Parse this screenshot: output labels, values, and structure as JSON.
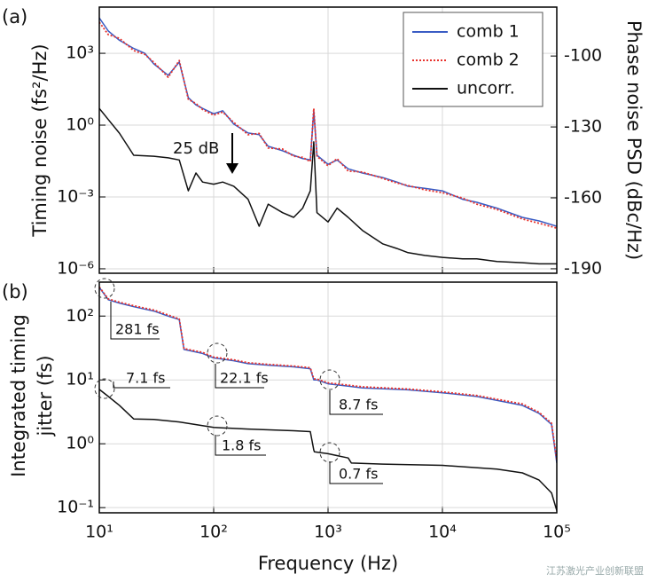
{
  "chart_data": [
    {
      "type": "line",
      "panel_label": "(a)",
      "xscale": "log",
      "yscale": "log",
      "grid": true,
      "legend": "upper right",
      "ylabel": "Timing noise (fs²/Hz)",
      "y2label": "Phase noise PSD (dBc/Hz)",
      "xlim": [
        10,
        100000
      ],
      "xticks": [
        10,
        100,
        1000,
        10000,
        100000
      ],
      "ylim": [
        6.5e-07,
        85000
      ],
      "yticks": [
        {
          "value": 1000,
          "label": "10³"
        },
        {
          "value": 1,
          "label": "10⁰"
        },
        {
          "value": 0.001,
          "label": "10⁻³"
        },
        {
          "value": 1e-06,
          "label": "10⁻⁶"
        }
      ],
      "y2lim": [
        -191.9,
        -79.3
      ],
      "y2ticks": [
        -100,
        -130,
        -160,
        -190
      ],
      "annotations": [
        "25 dB"
      ],
      "series": [
        {
          "name": "comb 1",
          "color": "#3a5cc4",
          "style": "solid",
          "x": [
            10,
            12,
            15,
            20,
            25,
            30,
            40,
            50,
            60,
            70,
            80,
            100,
            120,
            150,
            200,
            250,
            300,
            400,
            500,
            600,
            700,
            750,
            800,
            1000,
            1200,
            1500,
            2000,
            3000,
            4000,
            5000,
            7000,
            10000,
            15000,
            20000,
            30000,
            50000,
            70000,
            100000
          ],
          "values": [
            30000,
            8500,
            3500,
            1600,
            1000,
            360,
            120,
            430,
            14,
            7,
            5,
            3,
            4,
            1.1,
            0.47,
            0.4,
            0.13,
            0.085,
            0.055,
            0.04,
            0.035,
            4,
            0.055,
            0.023,
            0.035,
            0.015,
            0.01,
            0.0065,
            0.0042,
            0.0028,
            0.0023,
            0.0018,
            0.0008,
            0.0006,
            0.00034,
            0.00014,
            0.0001,
            6e-05
          ]
        },
        {
          "name": "comb 2",
          "color": "#e8322d",
          "style": "dotted",
          "x": [
            10,
            12,
            15,
            20,
            25,
            30,
            40,
            50,
            60,
            70,
            80,
            100,
            120,
            150,
            200,
            250,
            300,
            400,
            500,
            600,
            700,
            750,
            800,
            1000,
            1200,
            1500,
            2000,
            3000,
            4000,
            5000,
            7000,
            10000,
            15000,
            20000,
            30000,
            50000,
            70000,
            100000
          ],
          "values": [
            20000,
            6000,
            4200,
            1300,
            900,
            420,
            100,
            500,
            12,
            8,
            4.5,
            2.6,
            3.5,
            1.3,
            0.4,
            0.45,
            0.11,
            0.1,
            0.05,
            0.045,
            0.03,
            5,
            0.05,
            0.02,
            0.04,
            0.012,
            0.011,
            0.006,
            0.0038,
            0.003,
            0.002,
            0.0015,
            0.0009,
            0.0005,
            0.0003,
            0.00012,
            8e-05,
            5e-05
          ]
        },
        {
          "name": "uncorr.",
          "color": "#111111",
          "style": "solid",
          "x": [
            10,
            12,
            15,
            20,
            30,
            40,
            50,
            60,
            70,
            80,
            100,
            120,
            150,
            200,
            250,
            300,
            400,
            500,
            600,
            700,
            750,
            800,
            1000,
            1200,
            1500,
            2000,
            3000,
            4000,
            5000,
            7000,
            10000,
            15000,
            20000,
            30000,
            50000,
            70000,
            100000
          ],
          "values": [
            5,
            1.7,
            0.46,
            0.055,
            0.05,
            0.043,
            0.035,
            0.0018,
            0.01,
            0.0042,
            0.0034,
            0.0042,
            0.0028,
            0.0008,
            6e-05,
            0.0005,
            0.00022,
            0.00014,
            0.00034,
            0.0018,
            0.2,
            0.00022,
            9e-05,
            0.00034,
            0.00014,
            4e-05,
            1.1e-05,
            7e-06,
            4.7e-06,
            3.6e-06,
            3e-06,
            2.6e-06,
            2.6e-06,
            2e-06,
            1.8e-06,
            1.6e-06,
            1.6e-06
          ]
        }
      ]
    },
    {
      "type": "line",
      "panel_label": "(b)",
      "xscale": "log",
      "yscale": "log",
      "grid": true,
      "xlabel": "Frequency (Hz)",
      "ylabel": [
        "Integrated timing",
        "jitter (fs)"
      ],
      "xlim": [
        10,
        100000
      ],
      "xticks": [
        {
          "value": 10,
          "label": "10¹"
        },
        {
          "value": 100,
          "label": "10²"
        },
        {
          "value": 1000,
          "label": "10³"
        },
        {
          "value": 10000,
          "label": "10⁴"
        },
        {
          "value": 100000,
          "label": "10⁵"
        }
      ],
      "ylim": [
        0.083,
        340
      ],
      "yticks": [
        {
          "value": 100,
          "label": "10²"
        },
        {
          "value": 10,
          "label": "10¹"
        },
        {
          "value": 1,
          "label": "10⁰"
        },
        {
          "value": 0.1,
          "label": "10⁻¹"
        }
      ],
      "annotations": [
        "281 fs",
        "22.1 fs",
        "8.7 fs",
        "7.1 fs",
        "1.8 fs",
        "0.7 fs"
      ],
      "series": [
        {
          "name": "comb 1",
          "color": "#3a5cc4",
          "style": "solid",
          "x": [
            10,
            12,
            15,
            20,
            30,
            40,
            50,
            55,
            60,
            80,
            100,
            150,
            200,
            300,
            500,
            700,
            750,
            800,
            1000,
            1500,
            2000,
            5000,
            10000,
            20000,
            50000,
            70000,
            90000,
            100000
          ],
          "values": [
            281,
            180,
            160,
            140,
            120,
            100,
            88,
            30,
            29,
            26,
            22.1,
            20,
            18,
            17,
            16,
            15,
            10,
            10,
            8.7,
            8,
            7.5,
            7,
            6.3,
            5.5,
            4,
            3,
            2,
            0.5
          ]
        },
        {
          "name": "comb 2",
          "color": "#e8322d",
          "style": "dotted",
          "x": [
            10,
            12,
            15,
            20,
            30,
            40,
            50,
            55,
            60,
            80,
            100,
            150,
            200,
            300,
            500,
            700,
            750,
            800,
            1000,
            1500,
            2000,
            5000,
            10000,
            20000,
            50000,
            70000,
            90000,
            100000
          ],
          "values": [
            285,
            185,
            165,
            145,
            124,
            104,
            90,
            31,
            30,
            27,
            22.8,
            20.6,
            18.6,
            17.5,
            16.5,
            15.5,
            10.4,
            10.3,
            9,
            8.3,
            7.8,
            7.2,
            6.5,
            5.7,
            4.2,
            3.1,
            2.1,
            0.55
          ]
        },
        {
          "name": "uncorr.",
          "color": "#111111",
          "style": "solid",
          "x": [
            10,
            12,
            15,
            20,
            30,
            50,
            100,
            200,
            500,
            700,
            750,
            760,
            1000,
            1500,
            1600,
            3000,
            10000,
            30000,
            50000,
            70000,
            90000,
            100000
          ],
          "values": [
            7.1,
            5.5,
            4,
            2.45,
            2.4,
            2.2,
            1.8,
            1.7,
            1.6,
            1.55,
            0.8,
            0.75,
            0.7,
            0.6,
            0.5,
            0.48,
            0.46,
            0.4,
            0.35,
            0.27,
            0.17,
            0.09
          ]
        }
      ]
    }
  ],
  "watermark": "江苏激光产业创新联盟"
}
